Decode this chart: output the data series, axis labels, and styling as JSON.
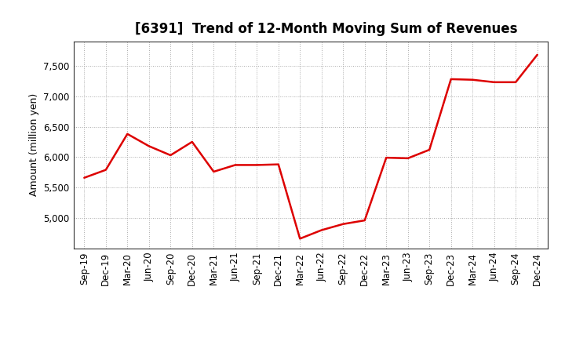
{
  "title": "[6391]  Trend of 12-Month Moving Sum of Revenues",
  "ylabel": "Amount (million yen)",
  "line_color": "#dd0000",
  "background_color": "#ffffff",
  "grid_color": "#aaaaaa",
  "x_labels": [
    "Sep-19",
    "Dec-19",
    "Mar-20",
    "Jun-20",
    "Sep-20",
    "Dec-20",
    "Mar-21",
    "Jun-21",
    "Sep-21",
    "Dec-21",
    "Mar-22",
    "Jun-22",
    "Sep-22",
    "Dec-22",
    "Mar-23",
    "Jun-23",
    "Sep-23",
    "Dec-23",
    "Mar-24",
    "Jun-24",
    "Sep-24",
    "Dec-24"
  ],
  "values": [
    5660,
    5790,
    6380,
    6180,
    6030,
    6250,
    5760,
    5870,
    5870,
    5880,
    4660,
    4800,
    4900,
    4960,
    5990,
    5980,
    6120,
    7280,
    7270,
    7230,
    7230,
    7680
  ],
  "ylim": [
    4500,
    7900
  ],
  "yticks": [
    5000,
    5500,
    6000,
    6500,
    7000,
    7500
  ],
  "title_fontsize": 12,
  "label_fontsize": 9,
  "tick_fontsize": 8.5
}
